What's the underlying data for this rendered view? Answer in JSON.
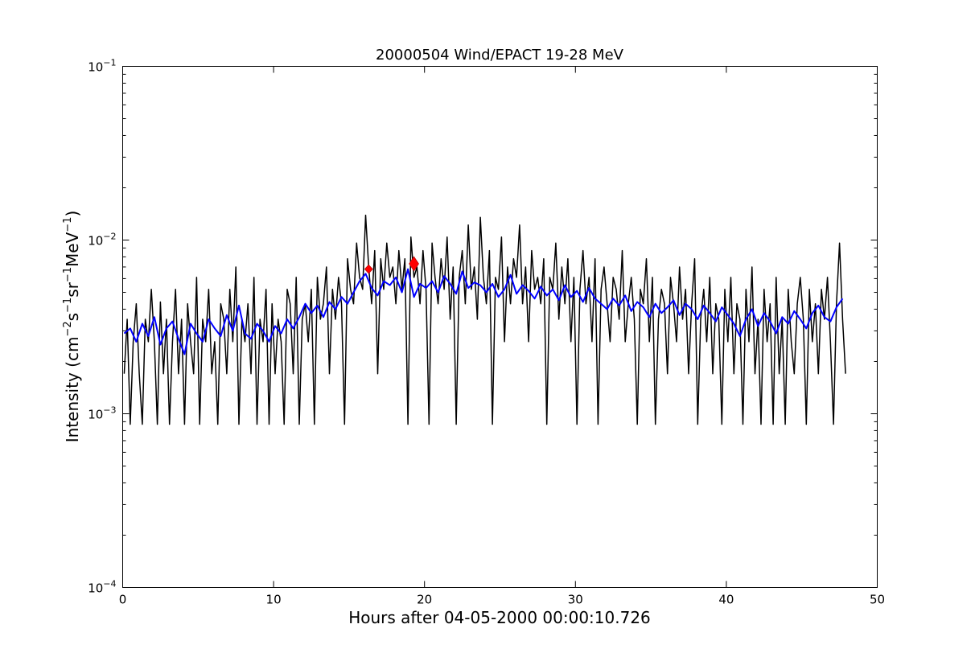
{
  "chart_data": {
    "type": "line",
    "title": "20000504 Wind/EPACT 19-28 MeV",
    "xlabel": "Hours after 04-05-2000 00:00:10.726",
    "ylabel_parts": [
      {
        "text": "Intensity (cm",
        "sup": false
      },
      {
        "text": "−2",
        "sup": true
      },
      {
        "text": "s",
        "sup": false
      },
      {
        "text": "−1",
        "sup": true
      },
      {
        "text": "sr",
        "sup": false
      },
      {
        "text": "−1",
        "sup": true
      },
      {
        "text": "MeV",
        "sup": false
      },
      {
        "text": "−1",
        "sup": true
      },
      {
        "text": ")",
        "sup": false
      }
    ],
    "xlim": [
      0,
      50
    ],
    "ylim": [
      0.0001,
      0.1
    ],
    "yscale": "log",
    "grid": false,
    "xticks": [
      0,
      10,
      20,
      30,
      40,
      50
    ],
    "xtick_labels": [
      "0",
      "10",
      "20",
      "30",
      "40",
      "50"
    ],
    "yticks": [
      0.0001,
      0.001,
      0.01,
      0.1
    ],
    "ytick_labels": [
      {
        "base": "10",
        "exp": "−4"
      },
      {
        "base": "10",
        "exp": "−3"
      },
      {
        "base": "10",
        "exp": "−2"
      },
      {
        "base": "10",
        "exp": "−1"
      }
    ],
    "series": [
      {
        "color": "#000000",
        "x_start": 0.1,
        "x_step": 0.2,
        "values": [
          0.0017,
          0.0035,
          0.00087,
          0.0026,
          0.0043,
          0.0017,
          0.00087,
          0.0035,
          0.0026,
          0.0052,
          0.0026,
          0.00087,
          0.0044,
          0.0017,
          0.0035,
          0.00087,
          0.0026,
          0.0052,
          0.0017,
          0.0035,
          0.00087,
          0.0043,
          0.0026,
          0.0017,
          0.0061,
          0.00087,
          0.0035,
          0.0026,
          0.0052,
          0.0017,
          0.0026,
          0.00087,
          0.0043,
          0.0035,
          0.0017,
          0.0052,
          0.0026,
          0.007,
          0.00087,
          0.0035,
          0.0026,
          0.0043,
          0.0017,
          0.0061,
          0.00087,
          0.0035,
          0.0026,
          0.0052,
          0.00087,
          0.0043,
          0.0017,
          0.0035,
          0.0026,
          0.00087,
          0.0052,
          0.0043,
          0.0017,
          0.0061,
          0.00087,
          0.0035,
          0.0043,
          0.0026,
          0.0052,
          0.00087,
          0.0061,
          0.0035,
          0.0043,
          0.007,
          0.0017,
          0.0052,
          0.0035,
          0.0061,
          0.0043,
          0.00087,
          0.0078,
          0.0052,
          0.0043,
          0.0096,
          0.0061,
          0.0052,
          0.0139,
          0.007,
          0.0043,
          0.0087,
          0.0017,
          0.0078,
          0.0052,
          0.0096,
          0.0061,
          0.007,
          0.0043,
          0.0087,
          0.0052,
          0.0078,
          0.00087,
          0.0104,
          0.0061,
          0.007,
          0.0043,
          0.0087,
          0.0052,
          0.00087,
          0.0096,
          0.0061,
          0.0043,
          0.0078,
          0.0052,
          0.0104,
          0.0035,
          0.007,
          0.00087,
          0.0061,
          0.0087,
          0.0043,
          0.0122,
          0.0052,
          0.007,
          0.0035,
          0.0135,
          0.0061,
          0.0043,
          0.0087,
          0.00087,
          0.0061,
          0.0052,
          0.0104,
          0.0026,
          0.007,
          0.0043,
          0.0078,
          0.0061,
          0.0122,
          0.0043,
          0.007,
          0.0026,
          0.0087,
          0.0052,
          0.0061,
          0.0043,
          0.0078,
          0.00087,
          0.0061,
          0.0052,
          0.0096,
          0.0035,
          0.007,
          0.0043,
          0.0078,
          0.0026,
          0.0061,
          0.00087,
          0.0052,
          0.0087,
          0.0043,
          0.0061,
          0.0026,
          0.0078,
          0.00087,
          0.0052,
          0.007,
          0.0043,
          0.0026,
          0.0061,
          0.0052,
          0.0035,
          0.0087,
          0.0026,
          0.0043,
          0.0061,
          0.0035,
          0.00087,
          0.0052,
          0.0043,
          0.0078,
          0.0026,
          0.0061,
          0.00087,
          0.0035,
          0.0052,
          0.0043,
          0.0017,
          0.0061,
          0.0043,
          0.0026,
          0.007,
          0.0035,
          0.0052,
          0.0017,
          0.0043,
          0.0078,
          0.00087,
          0.0035,
          0.0052,
          0.0026,
          0.0061,
          0.0017,
          0.0043,
          0.0035,
          0.00087,
          0.0052,
          0.0026,
          0.0061,
          0.0017,
          0.0043,
          0.0035,
          0.00087,
          0.0052,
          0.0026,
          0.007,
          0.0017,
          0.0035,
          0.00087,
          0.0052,
          0.0026,
          0.0043,
          0.00087,
          0.0061,
          0.0017,
          0.0035,
          0.00087,
          0.0052,
          0.0026,
          0.0017,
          0.0043,
          0.0061,
          0.0035,
          0.00087,
          0.0052,
          0.0026,
          0.0043,
          0.0017,
          0.0052,
          0.0035,
          0.0061,
          0.0026,
          0.00087,
          0.0043,
          0.0096,
          0.0035,
          0.0017
        ]
      },
      {
        "color": "#0000ff",
        "x_start": 0.1,
        "x_step": 0.4,
        "values": [
          0.0029,
          0.0031,
          0.0026,
          0.0033,
          0.0028,
          0.0036,
          0.0025,
          0.0031,
          0.0034,
          0.0027,
          0.0022,
          0.0033,
          0.0029,
          0.0026,
          0.0035,
          0.0031,
          0.0028,
          0.0037,
          0.003,
          0.0042,
          0.0029,
          0.0027,
          0.0033,
          0.003,
          0.0026,
          0.0032,
          0.0029,
          0.0035,
          0.0031,
          0.0036,
          0.0043,
          0.0038,
          0.0042,
          0.0036,
          0.0044,
          0.004,
          0.0047,
          0.0043,
          0.005,
          0.0058,
          0.0064,
          0.0053,
          0.0048,
          0.0058,
          0.0055,
          0.0061,
          0.005,
          0.0068,
          0.0047,
          0.0056,
          0.0053,
          0.0058,
          0.005,
          0.0062,
          0.0056,
          0.0049,
          0.0066,
          0.0053,
          0.0057,
          0.0055,
          0.005,
          0.0056,
          0.0047,
          0.0052,
          0.0063,
          0.0049,
          0.0055,
          0.0051,
          0.0046,
          0.0054,
          0.0048,
          0.0052,
          0.0045,
          0.0055,
          0.0047,
          0.0051,
          0.0044,
          0.0053,
          0.0046,
          0.0043,
          0.004,
          0.0046,
          0.0042,
          0.0048,
          0.0039,
          0.0044,
          0.0041,
          0.0036,
          0.0043,
          0.0038,
          0.0041,
          0.0045,
          0.0037,
          0.0043,
          0.004,
          0.0035,
          0.0042,
          0.0038,
          0.0034,
          0.0041,
          0.0037,
          0.0033,
          0.0028,
          0.0035,
          0.004,
          0.0032,
          0.0038,
          0.0034,
          0.0029,
          0.0036,
          0.0033,
          0.0039,
          0.0035,
          0.0031,
          0.0038,
          0.0042,
          0.0036,
          0.0034,
          0.0041,
          0.0046
        ]
      }
    ],
    "markers": [
      {
        "x": 16.3,
        "y": 0.0068,
        "shape": "diamond",
        "size": "small",
        "color": "#ff0000"
      },
      {
        "x": 19.3,
        "y": 0.0073,
        "shape": "diamond",
        "size": "large",
        "color": "#ff0000"
      }
    ]
  }
}
